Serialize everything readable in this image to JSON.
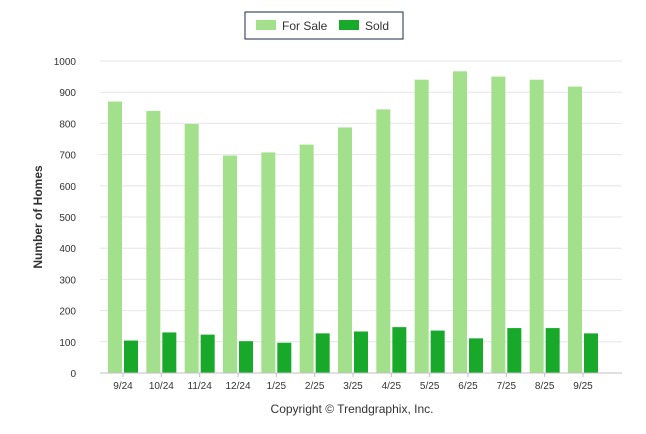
{
  "chart_data": {
    "type": "bar",
    "title": "",
    "xlabel": "",
    "ylabel": "Number of Homes",
    "ylim": [
      0,
      1000
    ],
    "yticks": [
      0,
      100,
      200,
      300,
      400,
      500,
      600,
      700,
      800,
      900,
      1000
    ],
    "grid": true,
    "legend_position": "top-center",
    "categories": [
      "9/24",
      "10/24",
      "11/24",
      "12/24",
      "1/25",
      "2/25",
      "3/25",
      "4/25",
      "5/25",
      "6/25",
      "7/25",
      "8/25",
      "9/25"
    ],
    "series": [
      {
        "name": "For Sale",
        "color": "#a3e08c",
        "values": [
          870,
          840,
          798,
          697,
          707,
          732,
          787,
          845,
          940,
          967,
          950,
          940,
          918
        ]
      },
      {
        "name": "Sold",
        "color": "#18a82a",
        "values": [
          104,
          130,
          123,
          102,
          97,
          127,
          133,
          147,
          136,
          111,
          144,
          144,
          127
        ]
      }
    ]
  },
  "caption": "Copyright © Trendgraphix, Inc."
}
